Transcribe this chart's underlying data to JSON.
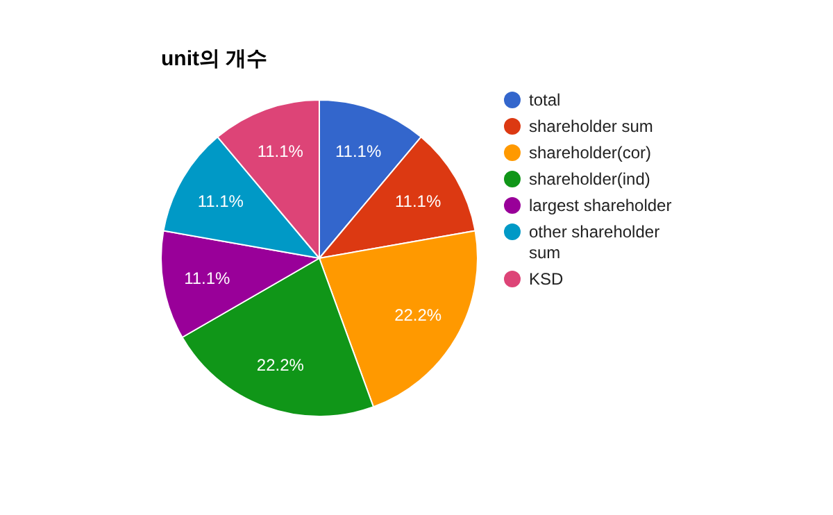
{
  "chart_data": {
    "type": "pie",
    "title": "unit의 개수",
    "categories": [
      "total",
      "shareholder sum",
      "shareholder(cor)",
      "shareholder(ind)",
      "largest shareholder",
      "other shareholder sum",
      "KSD"
    ],
    "values": [
      11.1,
      11.1,
      22.2,
      22.2,
      11.1,
      11.1,
      11.1
    ],
    "colors": [
      "#3366cc",
      "#dc3912",
      "#ff9900",
      "#109618",
      "#990099",
      "#0099c6",
      "#dd4477"
    ],
    "value_labels": [
      "11.1%",
      "11.1%",
      "22.2%",
      "22.2%",
      "11.1%",
      "11.1%",
      "11.1%"
    ],
    "legend": "right"
  }
}
